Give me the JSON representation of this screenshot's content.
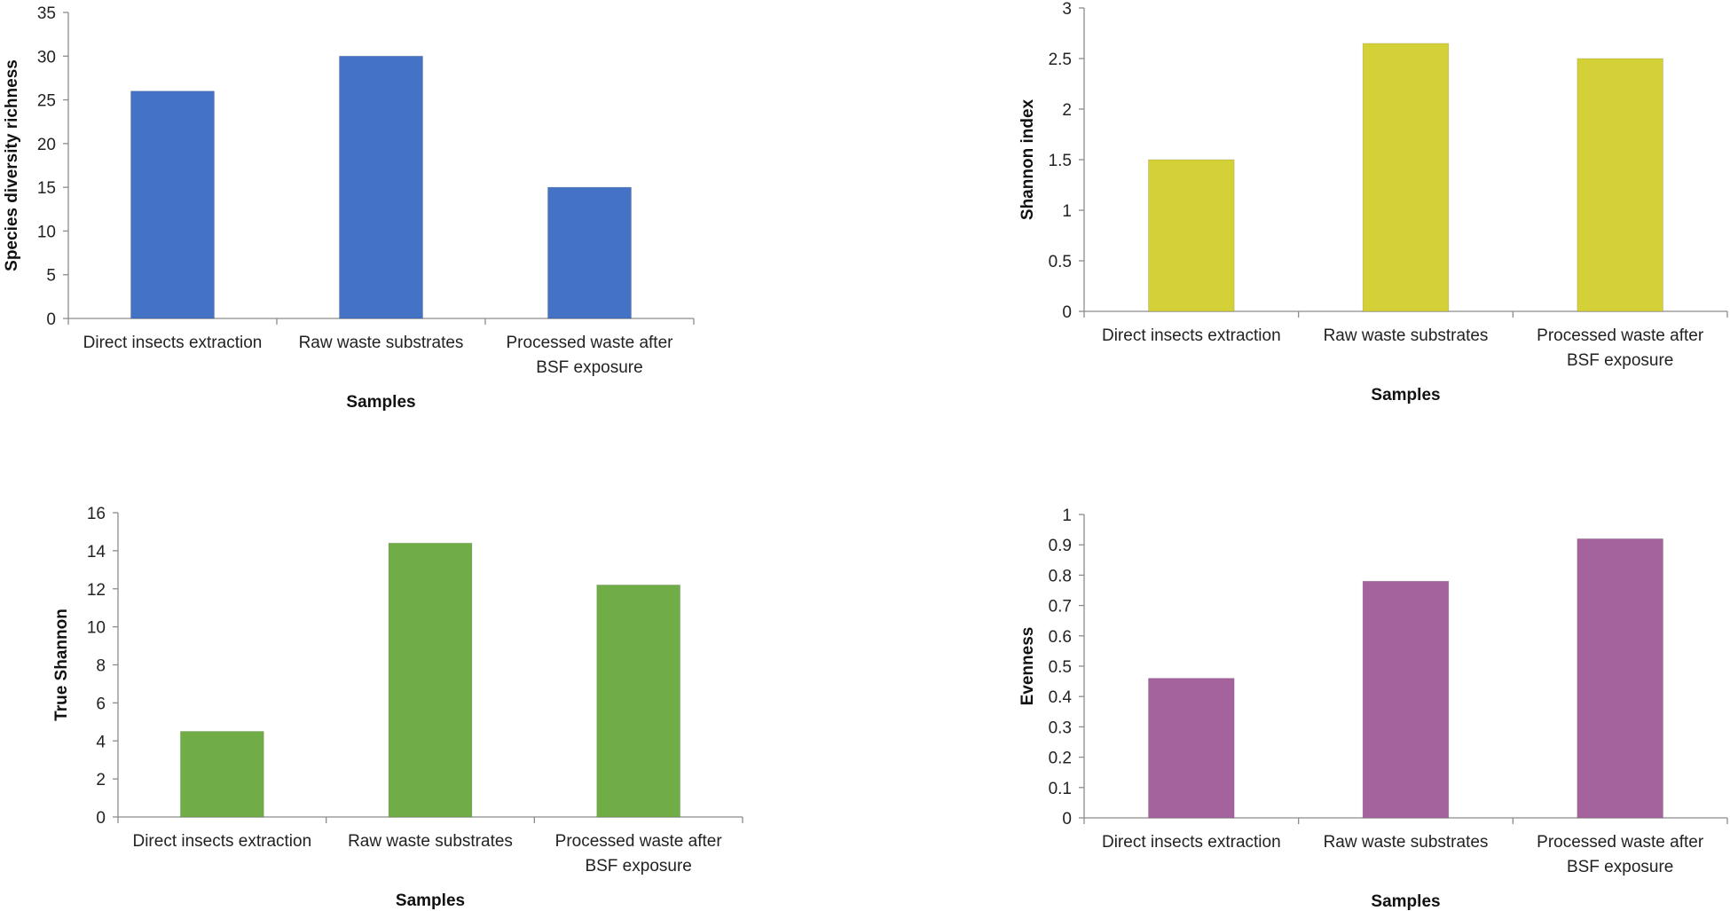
{
  "chart_data": [
    {
      "type": "bar",
      "title": "",
      "categories": [
        "Direct insects extraction",
        "Raw waste substrates",
        "Processed waste after BSF exposure"
      ],
      "category_lines": [
        [
          "Direct insects extraction"
        ],
        [
          "Raw waste substrates"
        ],
        [
          "Processed waste after",
          "BSF exposure"
        ]
      ],
      "values": [
        26,
        30,
        15
      ],
      "xlabel": "Samples",
      "ylabel": "Species diversity richness",
      "ylim": [
        0,
        35
      ],
      "yticks": [
        0,
        5,
        10,
        15,
        20,
        25,
        30,
        35
      ],
      "color": "#4472C4",
      "grid": false,
      "legend": "none"
    },
    {
      "type": "bar",
      "title": "",
      "categories": [
        "Direct insects extraction",
        "Raw waste substrates",
        "Processed waste after BSF exposure"
      ],
      "category_lines": [
        [
          "Direct insects extraction"
        ],
        [
          "Raw waste substrates"
        ],
        [
          "Processed waste after",
          "BSF exposure"
        ]
      ],
      "values": [
        1.5,
        2.65,
        2.5
      ],
      "xlabel": "Samples",
      "ylabel": "Shannon index",
      "ylim": [
        0,
        3
      ],
      "yticks": [
        0,
        0.5,
        1,
        1.5,
        2,
        2.5,
        3
      ],
      "color": "#D4D037",
      "grid": false,
      "legend": "none"
    },
    {
      "type": "bar",
      "title": "",
      "categories": [
        "Direct insects extraction",
        "Raw waste substrates",
        "Processed waste after BSF exposure"
      ],
      "category_lines": [
        [
          "Direct insects extraction"
        ],
        [
          "Raw waste substrates"
        ],
        [
          "Processed waste after",
          "BSF exposure"
        ]
      ],
      "values": [
        4.5,
        14.4,
        12.2
      ],
      "xlabel": "Samples",
      "ylabel": "True Shannon",
      "ylim": [
        0,
        16
      ],
      "yticks": [
        0,
        2,
        4,
        6,
        8,
        10,
        12,
        14,
        16
      ],
      "color": "#70AD47",
      "grid": false,
      "legend": "none"
    },
    {
      "type": "bar",
      "title": "",
      "categories": [
        "Direct insects extraction",
        "Raw waste substrates",
        "Processed waste after BSF exposure"
      ],
      "category_lines": [
        [
          "Direct insects extraction"
        ],
        [
          "Raw waste substrates"
        ],
        [
          "Processed waste after",
          "BSF exposure"
        ]
      ],
      "values": [
        0.46,
        0.78,
        0.92
      ],
      "xlabel": "Samples",
      "ylabel": "Evenness",
      "ylim": [
        0,
        1
      ],
      "yticks": [
        0,
        0.1,
        0.2,
        0.3,
        0.4,
        0.5,
        0.6,
        0.7,
        0.8,
        0.9,
        1
      ],
      "color": "#A5639E",
      "grid": false,
      "legend": "none"
    }
  ]
}
